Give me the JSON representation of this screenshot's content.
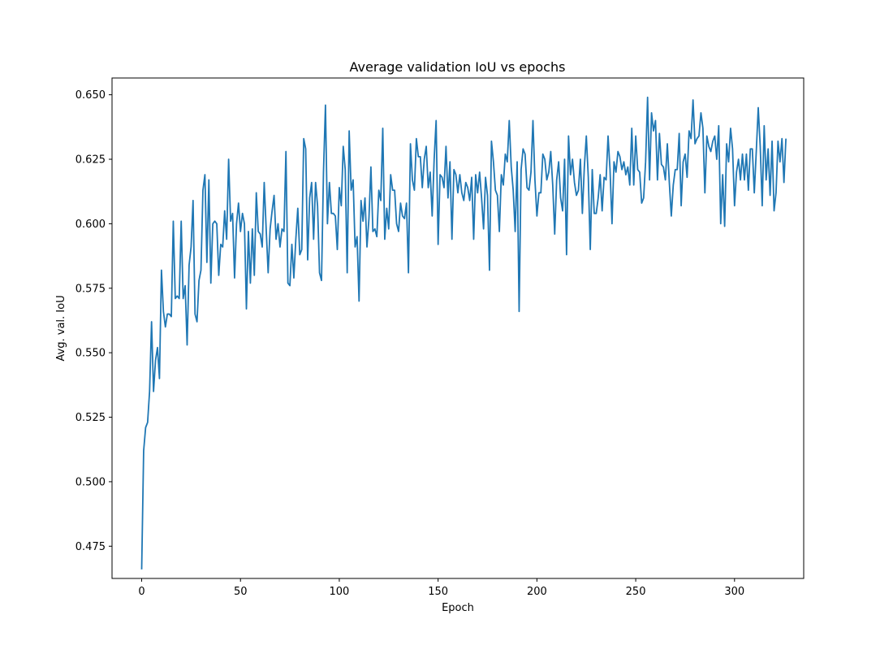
{
  "chart_data": {
    "type": "line",
    "title": "Average validation IoU vs epochs",
    "xlabel": "Epoch",
    "ylabel": "Avg. val. IoU",
    "xlim": [
      -15,
      335
    ],
    "ylim": [
      0.4625,
      0.6565
    ],
    "xticks": [
      0,
      50,
      100,
      150,
      200,
      250,
      300
    ],
    "yticks": [
      0.475,
      0.5,
      0.525,
      0.55,
      0.575,
      0.6,
      0.625,
      0.65
    ],
    "ytick_labels": [
      "0.475",
      "0.500",
      "0.525",
      "0.550",
      "0.575",
      "0.600",
      "0.625",
      "0.650"
    ],
    "grid": false,
    "line_color": "#1f77b4",
    "x_start": 0,
    "x_step": 1,
    "series": [
      {
        "values": [
          0.466,
          0.512,
          0.521,
          0.523,
          0.535,
          0.562,
          0.535,
          0.547,
          0.552,
          0.54,
          0.582,
          0.566,
          0.56,
          0.565,
          0.565,
          0.564,
          0.601,
          0.571,
          0.572,
          0.571,
          0.601,
          0.571,
          0.576,
          0.553,
          0.584,
          0.591,
          0.609,
          0.565,
          0.562,
          0.578,
          0.582,
          0.613,
          0.619,
          0.585,
          0.617,
          0.577,
          0.6,
          0.601,
          0.6,
          0.58,
          0.592,
          0.591,
          0.605,
          0.594,
          0.625,
          0.601,
          0.604,
          0.579,
          0.6,
          0.608,
          0.597,
          0.604,
          0.6,
          0.567,
          0.597,
          0.577,
          0.598,
          0.58,
          0.612,
          0.597,
          0.596,
          0.591,
          0.616,
          0.598,
          0.581,
          0.598,
          0.605,
          0.611,
          0.594,
          0.6,
          0.591,
          0.598,
          0.597,
          0.628,
          0.577,
          0.576,
          0.592,
          0.579,
          0.594,
          0.606,
          0.588,
          0.59,
          0.633,
          0.629,
          0.586,
          0.61,
          0.616,
          0.594,
          0.616,
          0.607,
          0.581,
          0.578,
          0.62,
          0.646,
          0.6,
          0.616,
          0.604,
          0.604,
          0.603,
          0.59,
          0.614,
          0.607,
          0.63,
          0.621,
          0.581,
          0.636,
          0.613,
          0.617,
          0.591,
          0.595,
          0.57,
          0.609,
          0.601,
          0.61,
          0.591,
          0.602,
          0.622,
          0.597,
          0.598,
          0.595,
          0.613,
          0.609,
          0.637,
          0.594,
          0.606,
          0.598,
          0.619,
          0.613,
          0.613,
          0.6,
          0.597,
          0.608,
          0.603,
          0.602,
          0.608,
          0.581,
          0.631,
          0.617,
          0.613,
          0.633,
          0.626,
          0.626,
          0.614,
          0.625,
          0.63,
          0.614,
          0.62,
          0.603,
          0.625,
          0.64,
          0.592,
          0.619,
          0.618,
          0.614,
          0.63,
          0.61,
          0.624,
          0.594,
          0.621,
          0.619,
          0.612,
          0.619,
          0.612,
          0.609,
          0.616,
          0.614,
          0.609,
          0.618,
          0.594,
          0.619,
          0.612,
          0.62,
          0.61,
          0.598,
          0.618,
          0.611,
          0.582,
          0.632,
          0.624,
          0.613,
          0.611,
          0.597,
          0.619,
          0.615,
          0.627,
          0.624,
          0.64,
          0.622,
          0.613,
          0.597,
          0.624,
          0.566,
          0.621,
          0.629,
          0.627,
          0.614,
          0.613,
          0.62,
          0.64,
          0.617,
          0.603,
          0.612,
          0.612,
          0.627,
          0.625,
          0.617,
          0.62,
          0.628,
          0.615,
          0.596,
          0.617,
          0.624,
          0.61,
          0.605,
          0.625,
          0.588,
          0.634,
          0.619,
          0.625,
          0.616,
          0.611,
          0.613,
          0.625,
          0.604,
          0.622,
          0.634,
          0.618,
          0.59,
          0.621,
          0.604,
          0.604,
          0.61,
          0.619,
          0.605,
          0.618,
          0.617,
          0.634,
          0.621,
          0.6,
          0.624,
          0.62,
          0.628,
          0.626,
          0.621,
          0.624,
          0.619,
          0.622,
          0.615,
          0.637,
          0.615,
          0.634,
          0.621,
          0.62,
          0.608,
          0.61,
          0.624,
          0.649,
          0.617,
          0.643,
          0.636,
          0.64,
          0.617,
          0.635,
          0.623,
          0.622,
          0.617,
          0.631,
          0.616,
          0.603,
          0.615,
          0.621,
          0.621,
          0.635,
          0.607,
          0.624,
          0.627,
          0.618,
          0.636,
          0.633,
          0.648,
          0.631,
          0.633,
          0.634,
          0.643,
          0.637,
          0.612,
          0.634,
          0.63,
          0.628,
          0.632,
          0.634,
          0.625,
          0.638,
          0.6,
          0.619,
          0.599,
          0.631,
          0.624,
          0.637,
          0.629,
          0.607,
          0.62,
          0.625,
          0.617,
          0.627,
          0.617,
          0.627,
          0.613,
          0.629,
          0.629,
          0.612,
          0.628,
          0.645,
          0.63,
          0.607,
          0.638,
          0.617,
          0.629,
          0.611,
          0.632,
          0.605,
          0.612,
          0.632,
          0.624,
          0.633,
          0.616,
          0.633
        ]
      }
    ]
  }
}
